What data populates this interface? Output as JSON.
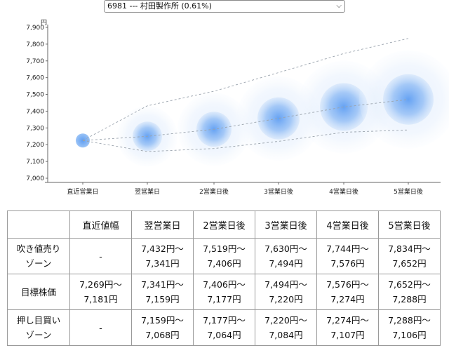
{
  "stock_select": {
    "value": "6981 --- 村田製作所 (0.61%)",
    "icon": "chevron-down-icon"
  },
  "chart_data": {
    "type": "scatter",
    "unit_label": "円",
    "ylim": [
      7000,
      7900
    ],
    "yticks": [
      "7,000",
      "7,100",
      "7,200",
      "7,300",
      "7,400",
      "7,500",
      "7,600",
      "7,700",
      "7,800",
      "7,900"
    ],
    "categories": [
      "直近営業日",
      "翌営業日",
      "2営業日後",
      "3営業日後",
      "4営業日後",
      "5営業日後"
    ],
    "centers": [
      7225,
      7250,
      7292,
      7357,
      7425,
      7470
    ],
    "upper_trend": [
      7225,
      7432,
      7519,
      7630,
      7744,
      7834
    ],
    "lower_trend": [
      7225,
      7159,
      7177,
      7220,
      7274,
      7288
    ],
    "accent": "#3d8cf0"
  },
  "table": {
    "headers": [
      "",
      "直近値幅",
      "翌営業日",
      "2営業日後",
      "3営業日後",
      "4営業日後",
      "5営業日後"
    ],
    "rows": [
      {
        "label": [
          "吹き値売り",
          "ゾーン"
        ],
        "cells": [
          [
            "-"
          ],
          [
            "7,432円〜",
            "7,341円"
          ],
          [
            "7,519円〜",
            "7,406円"
          ],
          [
            "7,630円〜",
            "7,494円"
          ],
          [
            "7,744円〜",
            "7,576円"
          ],
          [
            "7,834円〜",
            "7,652円"
          ]
        ]
      },
      {
        "label": [
          "目標株価"
        ],
        "cells": [
          [
            "7,269円〜",
            "7,181円"
          ],
          [
            "7,341円〜",
            "7,159円"
          ],
          [
            "7,406円〜",
            "7,177円"
          ],
          [
            "7,494円〜",
            "7,220円"
          ],
          [
            "7,576円〜",
            "7,274円"
          ],
          [
            "7,652円〜",
            "7,288円"
          ]
        ]
      },
      {
        "label": [
          "押し目買い",
          "ゾーン"
        ],
        "cells": [
          [
            "-"
          ],
          [
            "7,159円〜",
            "7,068円"
          ],
          [
            "7,177円〜",
            "7,064円"
          ],
          [
            "7,220円〜",
            "7,084円"
          ],
          [
            "7,274円〜",
            "7,107円"
          ],
          [
            "7,288円〜",
            "7,106円"
          ]
        ]
      }
    ]
  }
}
